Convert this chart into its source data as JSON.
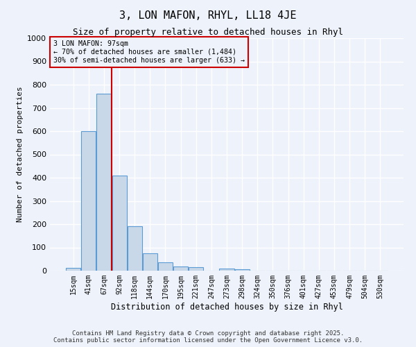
{
  "title": "3, LON MAFON, RHYL, LL18 4JE",
  "subtitle": "Size of property relative to detached houses in Rhyl",
  "xlabel": "Distribution of detached houses by size in Rhyl",
  "ylabel": "Number of detached properties",
  "bar_color": "#c8d8e8",
  "bar_edge_color": "#5b9bd5",
  "annotation_box_color": "#cc0000",
  "property_line_color": "#cc0000",
  "categories": [
    "15sqm",
    "41sqm",
    "67sqm",
    "92sqm",
    "118sqm",
    "144sqm",
    "170sqm",
    "195sqm",
    "221sqm",
    "247sqm",
    "273sqm",
    "298sqm",
    "324sqm",
    "350sqm",
    "376sqm",
    "401sqm",
    "427sqm",
    "453sqm",
    "479sqm",
    "504sqm",
    "530sqm"
  ],
  "values": [
    12,
    600,
    762,
    410,
    192,
    76,
    37,
    17,
    16,
    0,
    10,
    5,
    0,
    0,
    0,
    0,
    0,
    0,
    0,
    0,
    0
  ],
  "ylim": [
    0,
    1000
  ],
  "yticks": [
    0,
    100,
    200,
    300,
    400,
    500,
    600,
    700,
    800,
    900,
    1000
  ],
  "property_line_x": 2.5,
  "annotation_text_line1": "3 LON MAFON: 97sqm",
  "annotation_text_line2": "← 70% of detached houses are smaller (1,484)",
  "annotation_text_line3": "30% of semi-detached houses are larger (633) →",
  "footer_line1": "Contains HM Land Registry data © Crown copyright and database right 2025.",
  "footer_line2": "Contains public sector information licensed under the Open Government Licence v3.0.",
  "background_color": "#eef2fa",
  "grid_color": "#ffffff",
  "figsize": [
    6.0,
    5.0
  ],
  "dpi": 100
}
